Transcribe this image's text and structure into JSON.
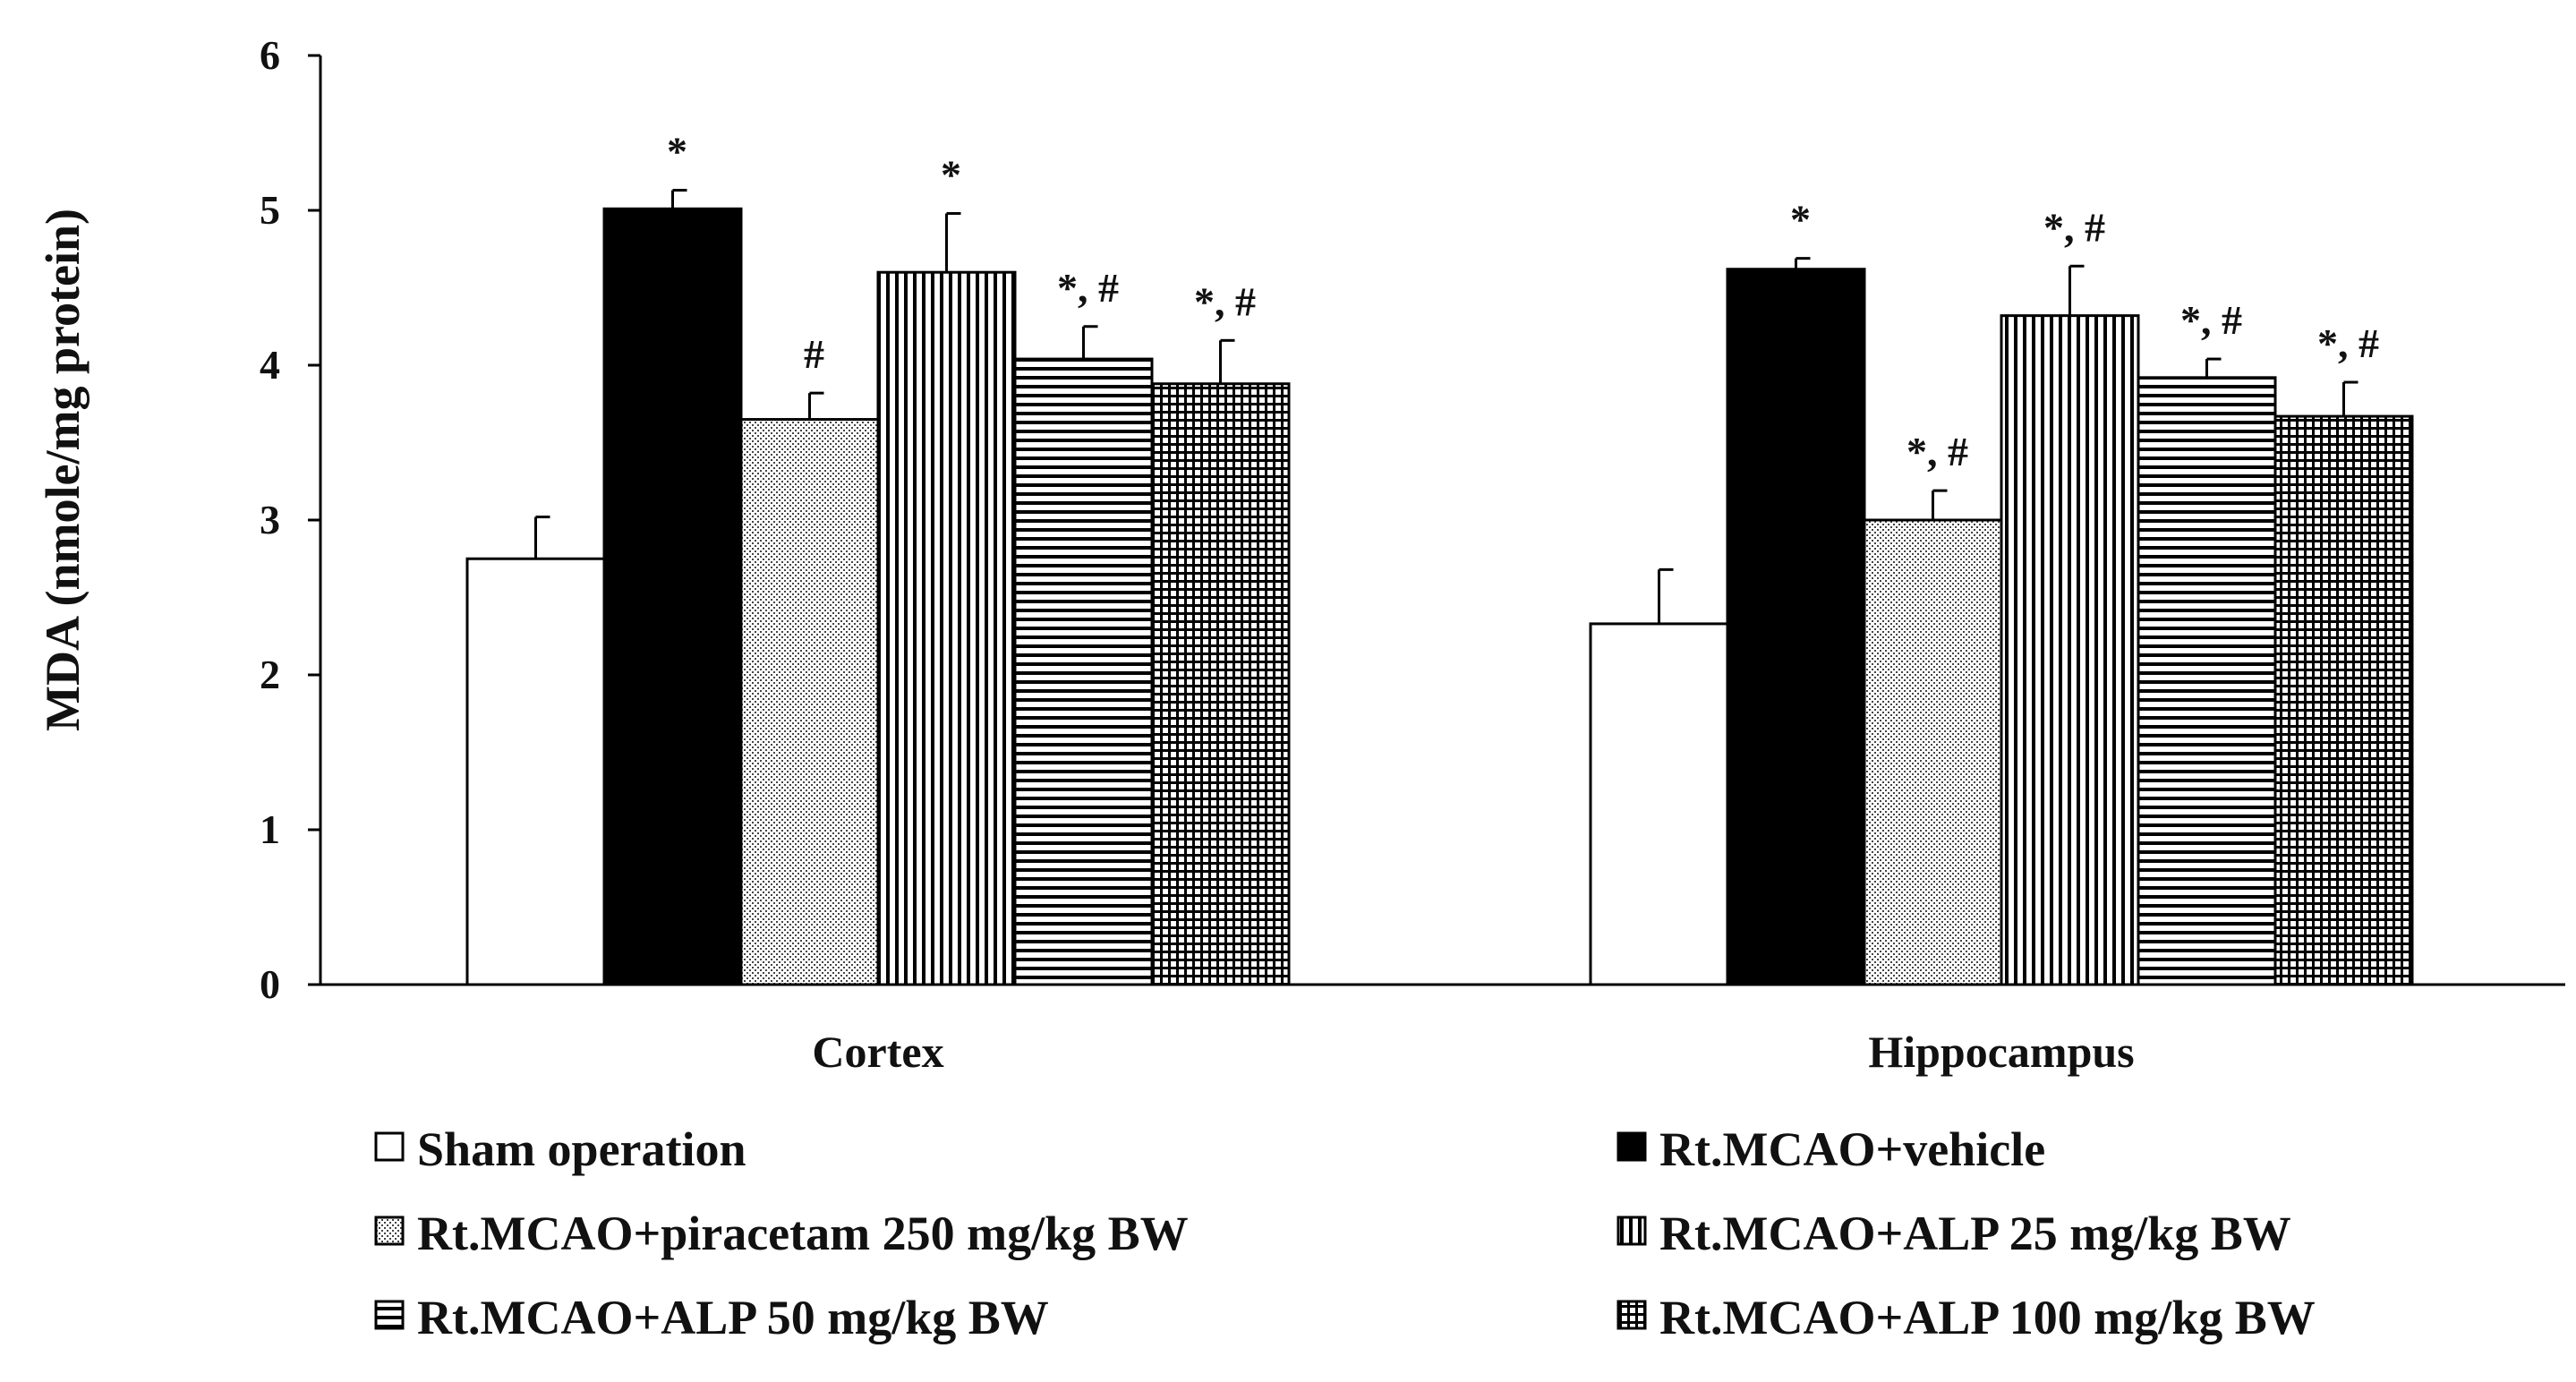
{
  "chart_data": {
    "type": "bar",
    "title": "",
    "xlabel": "",
    "ylabel": "MDA (nmole/mg protein)",
    "ylim": [
      0,
      6
    ],
    "yticks": [
      "0",
      "1",
      "2",
      "3",
      "4",
      "5",
      "6"
    ],
    "categories": [
      "Cortex",
      "Hippocampus"
    ],
    "series": [
      {
        "name": "Sham operation",
        "pattern": "white",
        "values": [
          2.75,
          2.33
        ],
        "errors": [
          0.27,
          0.35
        ],
        "annotations": [
          "",
          ""
        ]
      },
      {
        "name": "Rt.MCAO+vehicle",
        "pattern": "black",
        "values": [
          5.01,
          4.62
        ],
        "errors": [
          0.12,
          0.07
        ],
        "annotations": [
          "*",
          "*"
        ]
      },
      {
        "name": "Rt.MCAO+piracetam 250 mg/kg BW",
        "pattern": "dots",
        "values": [
          3.65,
          3.0
        ],
        "errors": [
          0.17,
          0.19
        ],
        "annotations": [
          "#",
          "*, #"
        ]
      },
      {
        "name": "Rt.MCAO+ALP 25 mg/kg BW",
        "pattern": "vlines",
        "values": [
          4.6,
          4.32
        ],
        "errors": [
          0.38,
          0.32
        ],
        "annotations": [
          "*",
          "*, #"
        ]
      },
      {
        "name": "Rt.MCAO+ALP 50 mg/kg BW",
        "pattern": "hlines",
        "values": [
          4.04,
          3.92
        ],
        "errors": [
          0.21,
          0.12
        ],
        "annotations": [
          "*, #",
          "*, #"
        ]
      },
      {
        "name": "Rt.MCAO+ALP 100 mg/kg BW",
        "pattern": "grid",
        "values": [
          3.88,
          3.67
        ],
        "errors": [
          0.28,
          0.22
        ],
        "annotations": [
          "*, #",
          "*, #"
        ]
      }
    ],
    "legend": "bottom"
  }
}
